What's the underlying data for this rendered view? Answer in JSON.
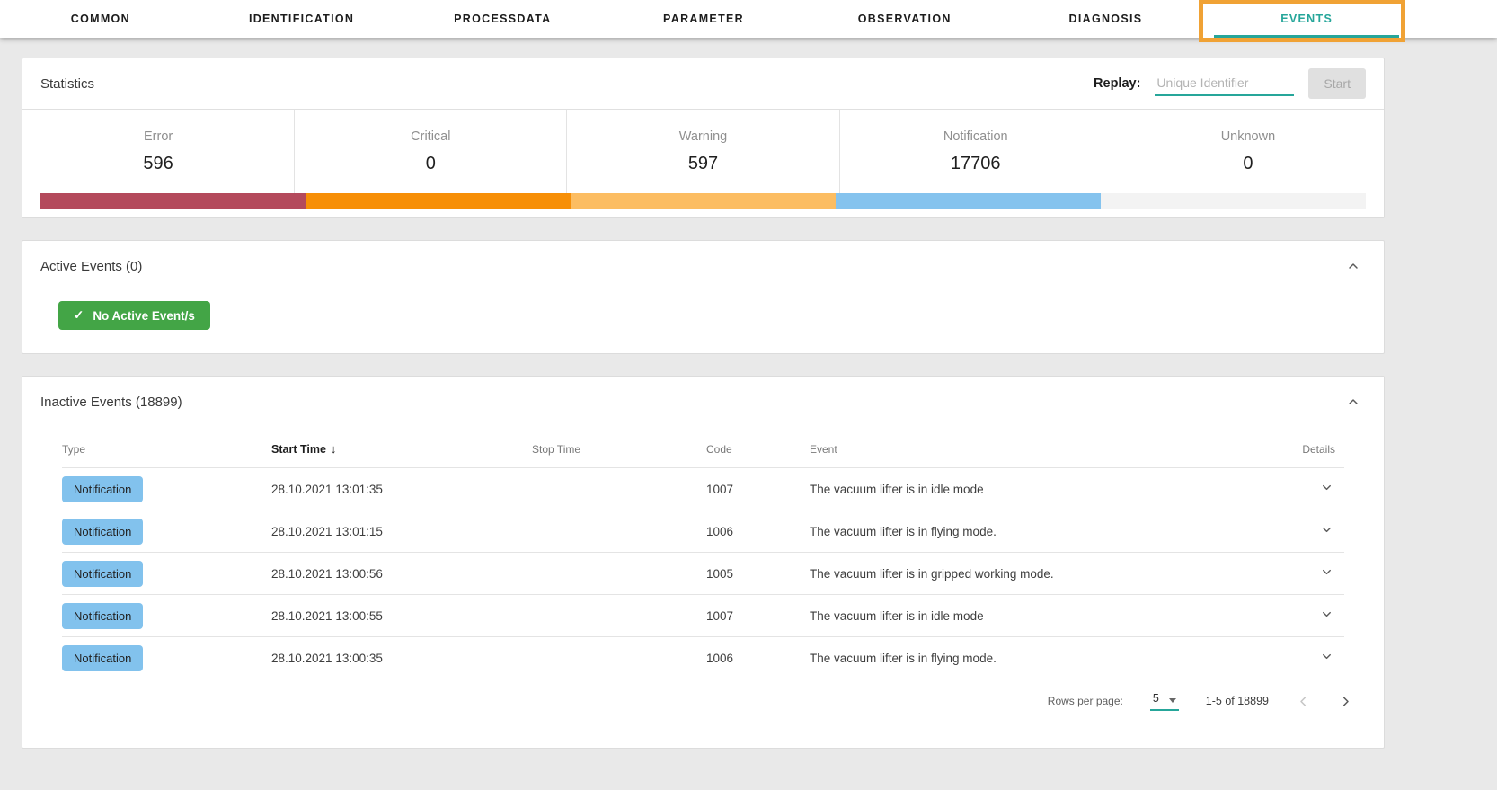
{
  "tabs": {
    "active_color": "#26a69a",
    "highlight_color": "#f0a235",
    "items": [
      {
        "label": "COMMON",
        "active": false
      },
      {
        "label": "IDENTIFICATION",
        "active": false
      },
      {
        "label": "PROCESSDATA",
        "active": false
      },
      {
        "label": "PARAMETER",
        "active": false
      },
      {
        "label": "OBSERVATION",
        "active": false
      },
      {
        "label": "DIAGNOSIS",
        "active": false
      },
      {
        "label": "EVENTS",
        "active": true
      }
    ]
  },
  "statistics": {
    "title": "Statistics",
    "replay_label": "Replay:",
    "replay_placeholder": "Unique Identifier",
    "replay_value": "",
    "start_button": "Start",
    "categories": [
      {
        "label": "Error",
        "value": "596",
        "color": "#b44a5c"
      },
      {
        "label": "Critical",
        "value": "0",
        "color": "#f78f07"
      },
      {
        "label": "Warning",
        "value": "597",
        "color": "#fcbd62"
      },
      {
        "label": "Notification",
        "value": "17706",
        "color": "#85c3ee"
      },
      {
        "label": "Unknown",
        "value": "0",
        "color": "#f3f3f3"
      }
    ]
  },
  "active_events": {
    "title": "Active Events (0)",
    "badge_label": "No Active Event/s",
    "badge_color": "#43a546",
    "check_icon": "✓"
  },
  "inactive_events": {
    "title": "Inactive Events (18899)",
    "columns": [
      "Type",
      "Start Time",
      "Stop Time",
      "Code",
      "Event",
      "Details"
    ],
    "sort_column": "Start Time",
    "sort_indicator": "↓",
    "type_badge_color": "#82c2ed",
    "rows": [
      {
        "type": "Notification",
        "start_time": "28.10.2021 13:01:35",
        "stop_time": "",
        "code": "1007",
        "event": "The vacuum lifter is in idle mode"
      },
      {
        "type": "Notification",
        "start_time": "28.10.2021 13:01:15",
        "stop_time": "",
        "code": "1006",
        "event": "The vacuum lifter is in flying mode."
      },
      {
        "type": "Notification",
        "start_time": "28.10.2021 13:00:56",
        "stop_time": "",
        "code": "1005",
        "event": "The vacuum lifter is in gripped working mode."
      },
      {
        "type": "Notification",
        "start_time": "28.10.2021 13:00:55",
        "stop_time": "",
        "code": "1007",
        "event": "The vacuum lifter is in idle mode"
      },
      {
        "type": "Notification",
        "start_time": "28.10.2021 13:00:35",
        "stop_time": "",
        "code": "1006",
        "event": "The vacuum lifter is in flying mode."
      }
    ],
    "pagination": {
      "rows_per_page_label": "Rows per page:",
      "rows_per_page_value": "5",
      "range_label": "1-5 of 18899"
    }
  }
}
